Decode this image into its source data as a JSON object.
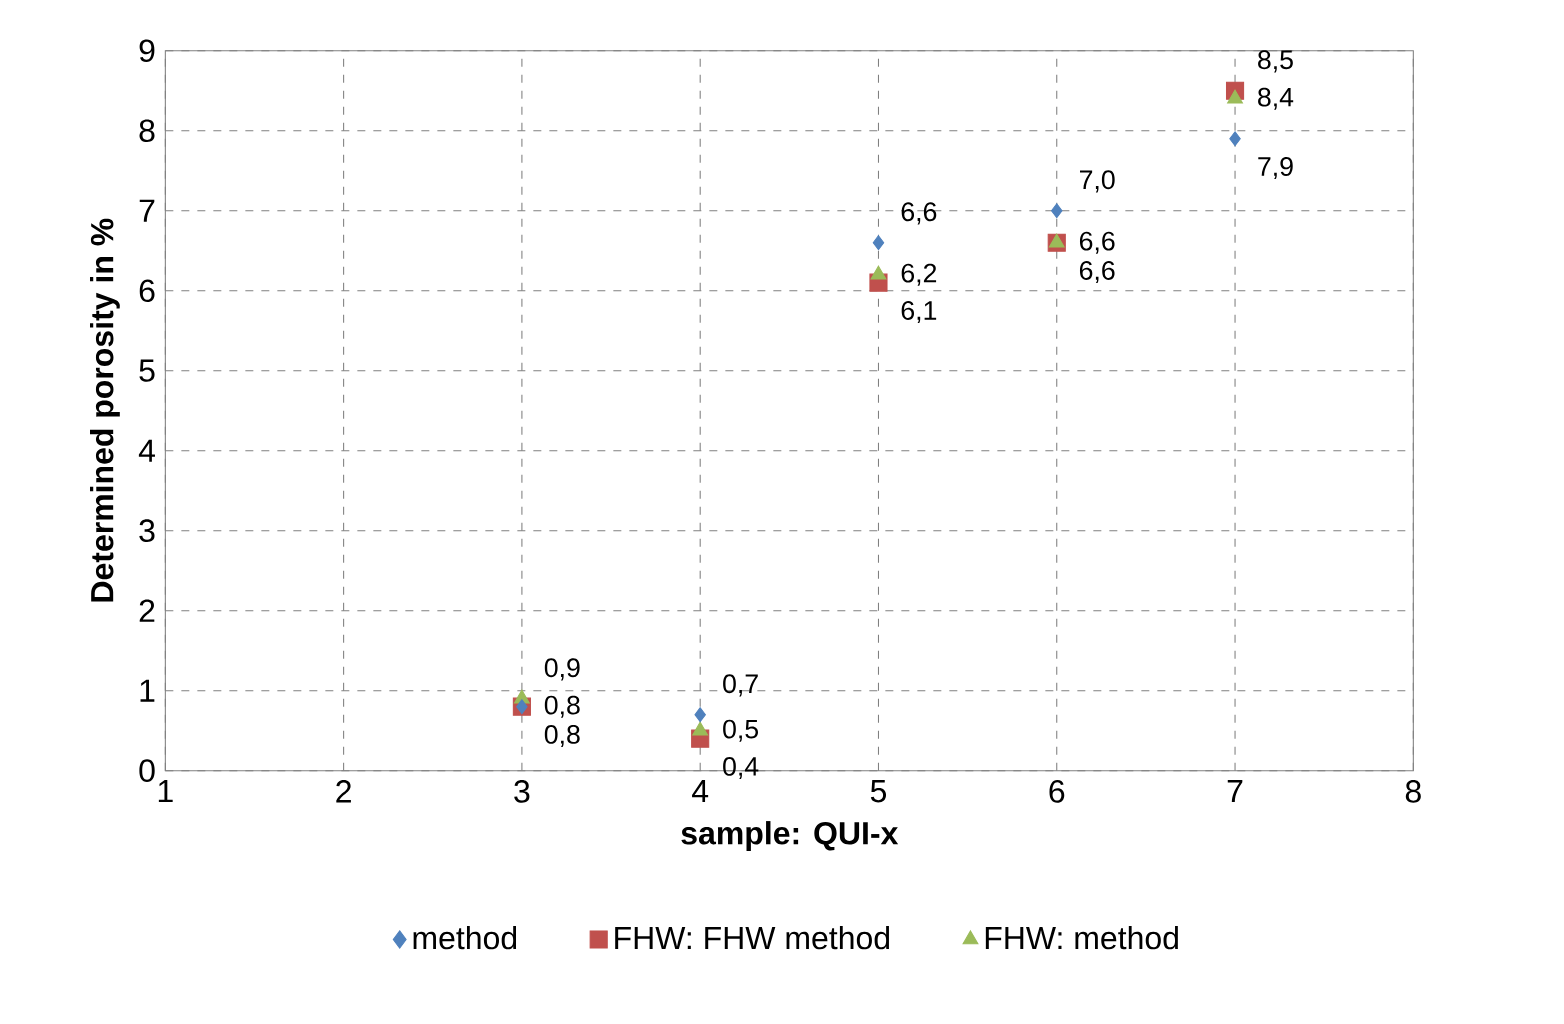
{
  "chart_data": {
    "type": "scatter",
    "xlabel": "sample: QUI-x",
    "ylabel": "Determined porosity in %",
    "xlim": [
      1,
      8
    ],
    "ylim": [
      0,
      9
    ],
    "xticks": [
      1,
      2,
      3,
      4,
      5,
      6,
      7,
      8
    ],
    "yticks": [
      0,
      1,
      2,
      3,
      4,
      5,
      6,
      7,
      8,
      9
    ],
    "grid": true,
    "legend": "bottom",
    "series": [
      {
        "name": "method",
        "color": "#4f81bd",
        "marker": "diamond",
        "x": [
          3,
          4,
          5,
          6,
          7
        ],
        "values": [
          0.8,
          0.7,
          6.6,
          7.0,
          7.9
        ],
        "value_labels": [
          "0,8",
          "0,7",
          "6,6",
          "7,0",
          "7,9"
        ]
      },
      {
        "name": "FHW: FHW method",
        "color": "#c0504d",
        "marker": "square",
        "x": [
          3,
          4,
          5,
          6,
          7
        ],
        "values": [
          0.8,
          0.4,
          6.1,
          6.6,
          8.5
        ],
        "value_labels": [
          "0,8",
          "0,4",
          "6,1",
          "6,6",
          "8,5"
        ]
      },
      {
        "name": "FHW: method",
        "color": "#9bbb59",
        "marker": "triangle",
        "x": [
          3,
          4,
          5,
          6,
          7
        ],
        "values": [
          0.9,
          0.5,
          6.2,
          6.6,
          8.4
        ],
        "value_labels": [
          "0,9",
          "0,5",
          "6,2",
          "6,6",
          "8,4"
        ]
      }
    ]
  }
}
